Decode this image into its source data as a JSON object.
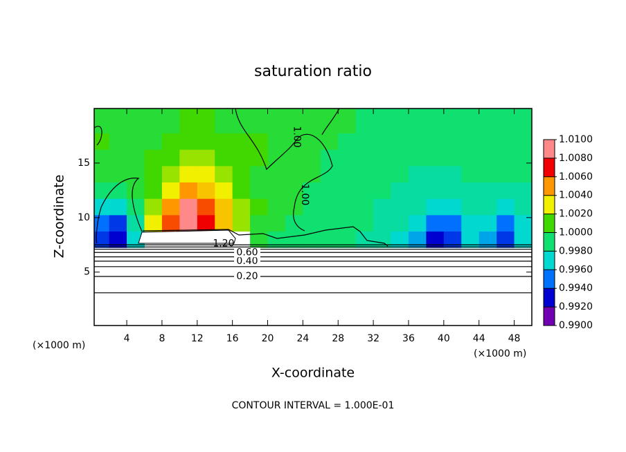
{
  "chart_data": {
    "type": "heatmap",
    "title": "saturation ratio",
    "x_label": "X-coordinate",
    "y_label": "Z-coordinate",
    "x_unit_left": "(×1000 m)",
    "x_unit_right": "(×1000 m)",
    "footer": "CONTOUR INTERVAL = 1.000E-01",
    "xlim": [
      0.3,
      50
    ],
    "ylim": [
      0.1,
      20
    ],
    "xticks": [
      4,
      8,
      12,
      16,
      20,
      24,
      28,
      32,
      36,
      40,
      44,
      48
    ],
    "yticks": [
      5,
      10,
      15
    ],
    "x": [
      1,
      3,
      5,
      7,
      9,
      11,
      13,
      15,
      17,
      19,
      21,
      23,
      25,
      27,
      29,
      31,
      33,
      35,
      37,
      39,
      41,
      43,
      45,
      47,
      49
    ],
    "y": [
      8,
      9.5,
      11,
      12.5,
      14,
      15.5,
      17,
      18.5,
      20
    ],
    "z": [
      [
        0.994,
        0.993,
        0.997,
        null,
        null,
        null,
        null,
        null,
        null,
        1.0,
        0.999,
        0.999,
        0.999,
        0.999,
        0.999,
        0.998,
        0.998,
        0.997,
        0.996,
        0.993,
        0.994,
        0.997,
        0.996,
        0.994,
        0.997
      ],
      [
        0.995,
        0.994,
        0.998,
        1.003,
        1.006,
        1.01,
        1.007,
        1.004,
        1.002,
        1.0,
        1.0,
        0.999,
        0.999,
        0.999,
        0.999,
        0.999,
        0.998,
        0.998,
        0.997,
        0.995,
        0.995,
        0.997,
        0.997,
        0.995,
        0.997
      ],
      [
        0.997,
        0.997,
        0.999,
        1.002,
        1.005,
        1.009,
        1.006,
        1.004,
        1.002,
        1.001,
        1.0,
        1.0,
        0.999,
        0.999,
        0.999,
        0.999,
        0.998,
        0.998,
        0.998,
        0.997,
        0.997,
        0.998,
        0.998,
        0.997,
        0.998
      ],
      [
        0.999,
        0.999,
        1.0,
        1.001,
        1.003,
        1.005,
        1.004,
        1.003,
        1.001,
        1.0,
        1.0,
        1.0,
        0.999,
        0.999,
        0.999,
        0.999,
        0.999,
        0.998,
        0.998,
        0.998,
        0.998,
        0.998,
        0.998,
        0.998,
        0.998
      ],
      [
        1.0,
        1.0,
        1.0,
        1.001,
        1.002,
        1.003,
        1.003,
        1.002,
        1.001,
        1.0,
        1.0,
        1.0,
        1.0,
        0.999,
        0.999,
        0.999,
        0.999,
        0.999,
        0.998,
        0.998,
        0.998,
        0.999,
        0.999,
        0.999,
        0.999
      ],
      [
        1.0,
        1.0,
        1.0,
        1.001,
        1.001,
        1.002,
        1.002,
        1.001,
        1.001,
        1.001,
        1.0,
        1.0,
        1.0,
        0.999,
        0.999,
        0.999,
        0.999,
        0.999,
        0.999,
        0.999,
        0.999,
        0.999,
        0.999,
        0.999,
        0.999
      ],
      [
        1.001,
        1.0,
        1.0,
        1.0,
        1.001,
        1.001,
        1.001,
        1.001,
        1.001,
        1.001,
        1.0,
        1.0,
        1.0,
        1.0,
        0.999,
        0.999,
        0.999,
        0.999,
        0.999,
        0.999,
        0.999,
        0.999,
        0.999,
        0.999,
        0.999
      ],
      [
        1.0,
        1.0,
        1.0,
        1.0,
        1.0,
        1.001,
        1.001,
        1.0,
        1.0,
        1.0,
        1.0,
        1.0,
        1.0,
        1.0,
        1.0,
        0.999,
        0.999,
        0.999,
        0.999,
        0.999,
        0.999,
        0.999,
        0.999,
        0.999,
        0.999
      ],
      [
        1.0,
        1.0,
        1.0,
        1.0,
        1.0,
        1.001,
        1.001,
        1.0,
        1.0,
        1.0,
        1.0,
        1.0,
        1.0,
        1.0,
        1.0,
        0.999,
        0.999,
        0.999,
        0.999,
        0.999,
        0.999,
        0.999,
        0.999,
        0.999,
        0.999
      ]
    ],
    "colorbar": {
      "ticks": [
        {
          "value": 0.99,
          "label": "0.9900"
        },
        {
          "value": 0.992,
          "label": "0.9920"
        },
        {
          "value": 0.994,
          "label": "0.9940"
        },
        {
          "value": 0.996,
          "label": "0.9960"
        },
        {
          "value": 0.998,
          "label": "0.9980"
        },
        {
          "value": 1.0,
          "label": "1.0000"
        },
        {
          "value": 1.002,
          "label": "1.0020"
        },
        {
          "value": 1.004,
          "label": "1.0040"
        },
        {
          "value": 1.006,
          "label": "1.0060"
        },
        {
          "value": 1.008,
          "label": "1.0080"
        },
        {
          "value": 1.01,
          "label": "1.0100"
        }
      ],
      "colors": [
        "#7000b0",
        "#0000d0",
        "#0070ff",
        "#00d8d0",
        "#10e070",
        "#40d800",
        "#f0f000",
        "#ff9800",
        "#f00000",
        "#ff8888"
      ]
    },
    "contours": [
      {
        "z": 3.1
      },
      {
        "z": 4.6,
        "label": "0.20"
      },
      {
        "z": 5.5
      },
      {
        "z": 6.0,
        "label": "0.40"
      },
      {
        "z": 6.4
      },
      {
        "z": 6.8,
        "label": "0.60"
      },
      {
        "z": 7.1
      },
      {
        "z": 7.3
      },
      {
        "z": 7.5
      }
    ],
    "annotations": [
      {
        "text": "1.00",
        "x": 23.3,
        "z": 17.4
      },
      {
        "text": "1.00",
        "x": 24.2,
        "z": 12.1
      },
      {
        "text": "1.20",
        "x": 15,
        "z": 7.6
      }
    ]
  }
}
